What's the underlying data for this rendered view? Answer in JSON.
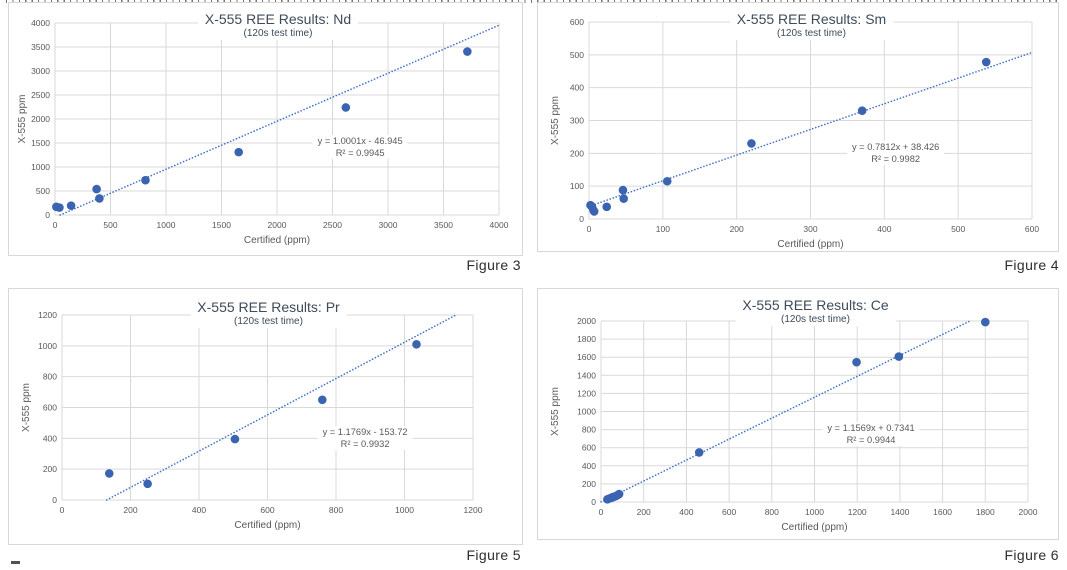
{
  "chart_data": [
    {
      "type": "scatter",
      "element": "Nd",
      "title": "X-555 REE Results: Nd",
      "subtitle": "(120s test time)",
      "xlabel": "Certified (ppm)",
      "ylabel": "X-555 ppm",
      "xlim": [
        0,
        4000
      ],
      "xtick_step": 500,
      "ylim": [
        0,
        4000
      ],
      "ytick_step": 500,
      "grid": true,
      "legend": "none",
      "marker_color": "#3a63b0",
      "trend_color": "#4472c4",
      "points": [
        [
          12,
          170
        ],
        [
          40,
          155
        ],
        [
          145,
          195
        ],
        [
          375,
          540
        ],
        [
          400,
          345
        ],
        [
          815,
          725
        ],
        [
          1655,
          1310
        ],
        [
          2620,
          2240
        ],
        [
          3715,
          3405
        ]
      ],
      "trendline": {
        "slope": 1.0001,
        "intercept": -46.945,
        "equation": "y = 1.0001x - 46.945",
        "r2": "R² = 0.9945"
      },
      "figure_caption": "Figure 3"
    },
    {
      "type": "scatter",
      "element": "Sm",
      "title": "X-555 REE Results: Sm",
      "subtitle": "(120s test time)",
      "xlabel": "Certified (ppm)",
      "ylabel": "X-555 ppm",
      "xlim": [
        0,
        600
      ],
      "xtick_step": 100,
      "ylim": [
        0,
        600
      ],
      "ytick_step": 100,
      "grid": true,
      "legend": "none",
      "marker_color": "#3a63b0",
      "trend_color": "#4472c4",
      "points": [
        [
          2,
          42
        ],
        [
          4,
          38
        ],
        [
          6,
          27
        ],
        [
          7,
          23
        ],
        [
          24,
          37
        ],
        [
          46,
          88
        ],
        [
          47,
          62
        ],
        [
          106,
          115
        ],
        [
          220,
          230
        ],
        [
          370,
          330
        ],
        [
          538,
          478
        ]
      ],
      "trendline": {
        "slope": 0.7812,
        "intercept": 38.426,
        "equation": "y = 0.7812x + 38.426",
        "r2": "R² = 0.9982"
      },
      "figure_caption": "Figure 4"
    },
    {
      "type": "scatter",
      "element": "Pr",
      "title": "X-555 REE Results: Pr",
      "subtitle": "(120s test time)",
      "xlabel": "Certified (ppm)",
      "ylabel": "X-555 ppm",
      "xlim": [
        0,
        1200
      ],
      "xtick_step": 200,
      "ylim": [
        0,
        1200
      ],
      "ytick_step": 200,
      "grid": true,
      "legend": "none",
      "marker_color": "#3a63b0",
      "trend_color": "#4472c4",
      "points": [
        [
          138,
          172
        ],
        [
          250,
          105
        ],
        [
          505,
          395
        ],
        [
          760,
          650
        ],
        [
          1035,
          1010
        ]
      ],
      "trendline": {
        "slope": 1.1769,
        "intercept": -153.72,
        "equation": "y = 1.1769x - 153.72",
        "r2": "R² = 0.9932"
      },
      "figure_caption": "Figure 5"
    },
    {
      "type": "scatter",
      "element": "Ce",
      "title": "X-555 REE Results: Ce",
      "subtitle": "(120s test time)",
      "xlabel": "Certified (ppm)",
      "ylabel": "X-555 ppm",
      "xlim": [
        0,
        2000
      ],
      "xtick_step": 200,
      "ylim": [
        0,
        2000
      ],
      "ytick_step": 200,
      "grid": true,
      "legend": "none",
      "marker_color": "#3a63b0",
      "trend_color": "#4472c4",
      "points": [
        [
          30,
          30
        ],
        [
          40,
          40
        ],
        [
          50,
          48
        ],
        [
          55,
          55
        ],
        [
          62,
          58
        ],
        [
          68,
          65
        ],
        [
          75,
          72
        ],
        [
          85,
          88
        ],
        [
          460,
          548
        ],
        [
          1197,
          1545
        ],
        [
          1395,
          1607
        ],
        [
          1800,
          1988
        ]
      ],
      "trendline": {
        "slope": 1.1569,
        "intercept": 0.7341,
        "equation": "y = 1.1569x + 0.7341",
        "r2": "R² = 0.9944"
      },
      "figure_caption": "Figure 6"
    }
  ],
  "colors": {
    "marker": "#3a63b0",
    "trend": "#4472c4",
    "grid": "#d9d9d9",
    "axis_text": "#595959",
    "title_text": "#3d4b5a",
    "caption_text": "#2d2d2d",
    "box_border": "#d8d8d8"
  }
}
